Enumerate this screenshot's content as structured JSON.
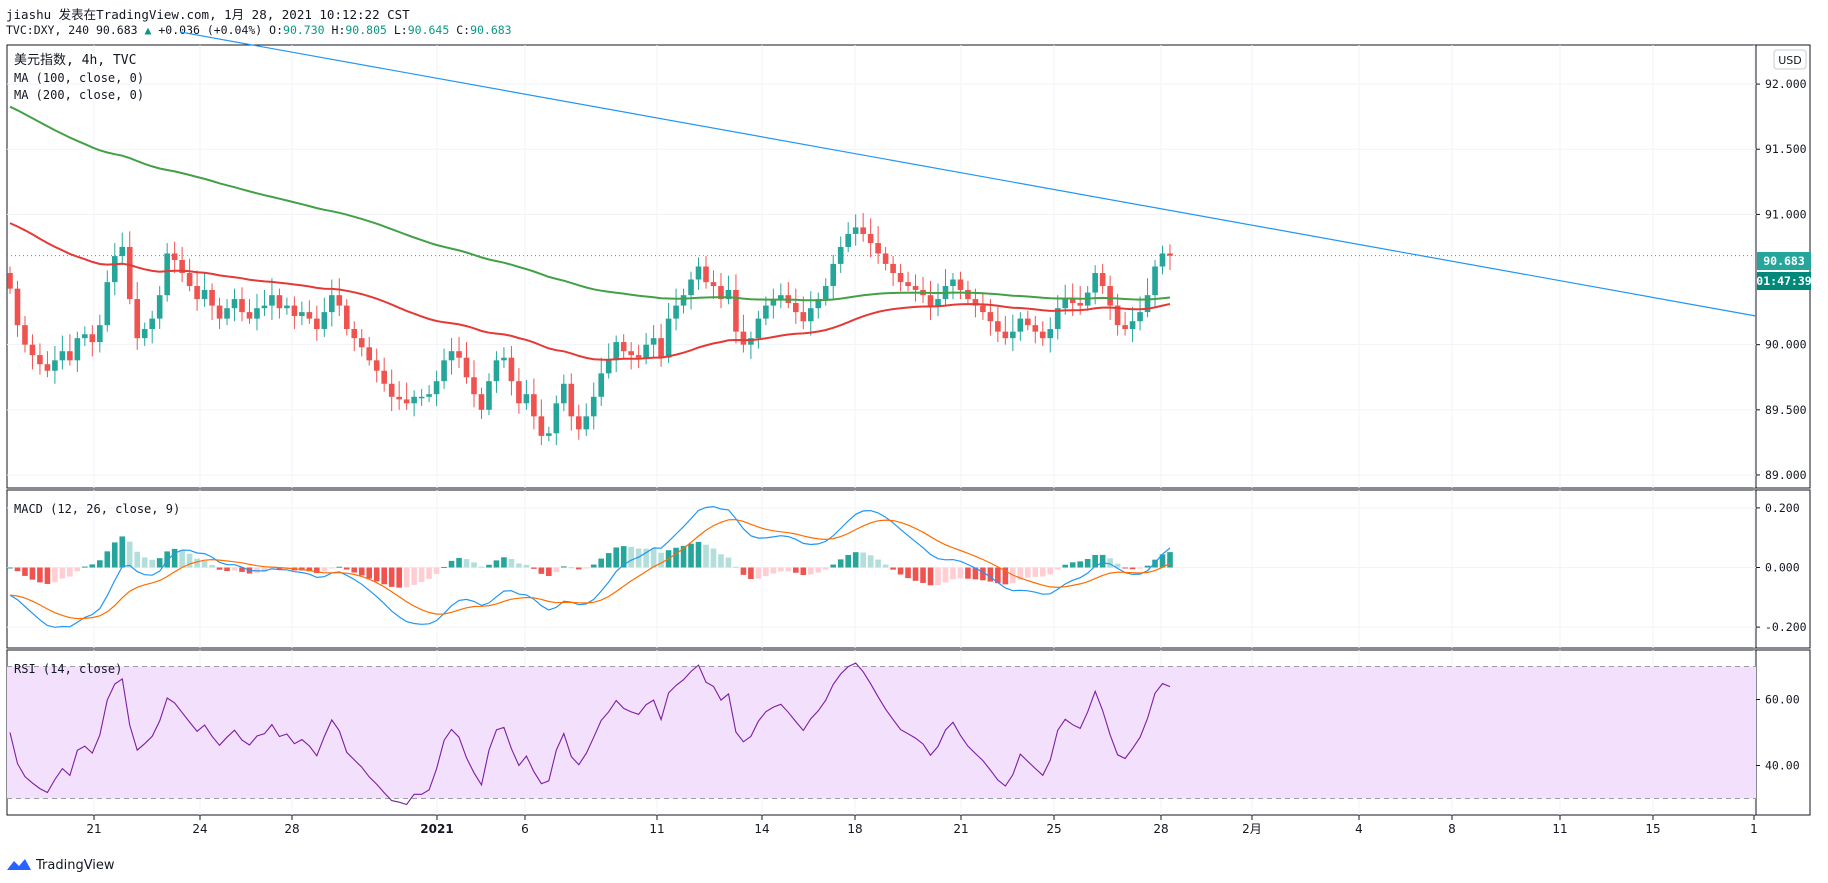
{
  "header": {
    "line1": "jiashu 发表在TradingView.com, 1月 28, 2021 10:12:22 CST",
    "symbol": "TVC:DXY, 240 90.683",
    "change": "+0.036 (+0.04%)",
    "o_label": "O:",
    "o_value": "90.730",
    "h_label": "H:",
    "h_value": "90.805",
    "l_label": "L:",
    "l_value": "90.645",
    "c_label": "C:",
    "c_value": "90.683"
  },
  "footer": {
    "brand": "TradingView"
  },
  "colors": {
    "up": "#26a69a",
    "down": "#ef5350",
    "ma100": "#e53935",
    "ma200": "#43a047",
    "trendline": "#2196f3",
    "macd": "#2196f3",
    "signal": "#ff6d00",
    "hist_up_strong": "#26a69a",
    "hist_up_weak": "#b2dfdb",
    "hist_down_strong": "#ef5350",
    "hist_down_weak": "#ffcdd2",
    "rsi": "#7b1fa2",
    "rsi_band": "#f3e0fc"
  },
  "chart_data": [
    {
      "type": "candlestick",
      "title": "美元指数, 4h, TVC",
      "legend": [
        "MA (100, close, 0)",
        "MA (200, close, 0)"
      ],
      "currency": "USD",
      "ylim": [
        88.9,
        92.3
      ],
      "yticks": [
        "92.000",
        "91.500",
        "91.000",
        "90.000",
        "89.500",
        "89.000"
      ],
      "last_price": "90.683",
      "countdown": "01:47:39",
      "x_ticks": [
        "21",
        "24",
        "28",
        "2021",
        "6",
        "11",
        "14",
        "18",
        "21",
        "25",
        "28",
        "2月",
        "4",
        "8",
        "11",
        "15",
        "1"
      ],
      "ohlc_close": [
        90.43,
        90.15,
        90.0,
        89.92,
        89.85,
        89.8,
        89.88,
        89.95,
        89.88,
        90.05,
        90.08,
        90.02,
        90.15,
        90.48,
        90.68,
        90.75,
        90.35,
        90.05,
        90.12,
        90.2,
        90.38,
        90.7,
        90.65,
        90.55,
        90.45,
        90.35,
        90.42,
        90.3,
        90.2,
        90.28,
        90.35,
        90.25,
        90.2,
        90.28,
        90.3,
        90.38,
        90.28,
        90.3,
        90.22,
        90.25,
        90.2,
        90.12,
        90.25,
        90.38,
        90.3,
        90.12,
        90.05,
        89.98,
        89.88,
        89.8,
        89.7,
        89.6,
        89.58,
        89.55,
        89.6,
        89.6,
        89.62,
        89.72,
        89.88,
        89.95,
        89.9,
        89.75,
        89.62,
        89.5,
        89.72,
        89.88,
        89.9,
        89.72,
        89.55,
        89.62,
        89.45,
        89.3,
        89.32,
        89.55,
        89.7,
        89.45,
        89.35,
        89.45,
        89.6,
        89.78,
        89.88,
        90.02,
        89.95,
        89.92,
        89.9,
        90.0,
        90.05,
        89.9,
        90.2,
        90.3,
        90.38,
        90.5,
        90.6,
        90.48,
        90.45,
        90.35,
        90.42,
        90.1,
        90.0,
        90.05,
        90.2,
        90.3,
        90.35,
        90.38,
        90.32,
        90.25,
        90.18,
        90.28,
        90.35,
        90.45,
        90.62,
        90.75,
        90.85,
        90.9,
        90.85,
        90.78,
        90.7,
        90.62,
        90.55,
        90.48,
        90.45,
        90.42,
        90.38,
        90.3,
        90.35,
        90.45,
        90.5,
        90.42,
        90.35,
        90.3,
        90.25,
        90.18,
        90.1,
        90.05,
        90.1,
        90.2,
        90.15,
        90.1,
        90.05,
        90.12,
        90.28,
        90.35,
        90.32,
        90.3,
        90.4,
        90.55,
        90.45,
        90.3,
        90.15,
        90.12,
        90.18,
        90.25,
        90.38,
        90.6,
        90.7,
        90.683
      ]
    },
    {
      "type": "line",
      "title": "MACD (12, 26, close, 9)",
      "series": [
        {
          "name": "MACD"
        },
        {
          "name": "Signal"
        },
        {
          "name": "Histogram"
        }
      ],
      "ylim": [
        -0.27,
        0.26
      ],
      "yticks": [
        "0.200",
        "0.000",
        "-0.200"
      ]
    },
    {
      "type": "line",
      "title": "RSI (14, close)",
      "series": [
        {
          "name": "RSI"
        }
      ],
      "ylim": [
        25,
        75
      ],
      "band": [
        30,
        70
      ],
      "yticks": [
        "60.00",
        "40.00"
      ]
    }
  ]
}
